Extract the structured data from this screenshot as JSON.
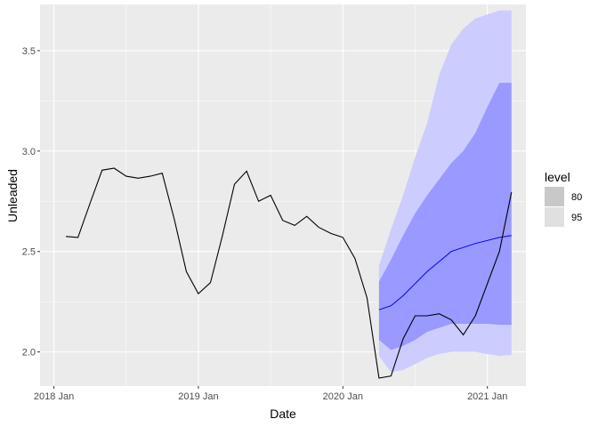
{
  "chart_data": {
    "type": "line",
    "xlabel": "Date",
    "ylabel": "Unleaded",
    "x_ticks": [
      "2018 Jan",
      "2019 Jan",
      "2020 Jan",
      "2021 Jan"
    ],
    "y_ticks": [
      "2.0",
      "2.5",
      "3.0",
      "3.5"
    ],
    "y_tick_values": [
      2.0,
      2.5,
      3.0,
      3.5
    ],
    "xlim": [
      "2017-12",
      "2021-04"
    ],
    "ylim": [
      1.83,
      3.73
    ],
    "grid": true,
    "legend_position": "right",
    "legend": {
      "title": "level",
      "items": [
        {
          "label": "80",
          "swatch_color": "#c8c8c8"
        },
        {
          "label": "95",
          "swatch_color": "#e0e0e0"
        }
      ]
    },
    "colors": {
      "panel": "#ebebeb",
      "grid": "#ffffff",
      "actual": "#000000",
      "forecast": "#0000ff",
      "band95": "#ccccff",
      "band80": "#9999ff"
    },
    "actual": {
      "x": [
        "2018-02",
        "2018-03",
        "2018-04",
        "2018-05",
        "2018-06",
        "2018-07",
        "2018-08",
        "2018-09",
        "2018-10",
        "2018-11",
        "2018-12",
        "2019-01",
        "2019-02",
        "2019-03",
        "2019-04",
        "2019-05",
        "2019-06",
        "2019-07",
        "2019-08",
        "2019-09",
        "2019-10",
        "2019-11",
        "2019-12",
        "2020-01",
        "2020-02",
        "2020-03",
        "2020-04",
        "2020-05",
        "2020-06",
        "2020-07",
        "2020-08",
        "2020-09",
        "2020-10",
        "2020-11",
        "2020-12",
        "2021-01",
        "2021-02",
        "2021-03"
      ],
      "y": [
        2.575,
        2.57,
        2.74,
        2.905,
        2.915,
        2.875,
        2.865,
        2.875,
        2.89,
        2.66,
        2.4,
        2.29,
        2.345,
        2.58,
        2.835,
        2.9,
        2.75,
        2.78,
        2.655,
        2.63,
        2.675,
        2.62,
        2.59,
        2.57,
        2.465,
        2.27,
        1.87,
        1.88,
        2.065,
        2.18,
        2.18,
        2.19,
        2.16,
        2.085,
        2.18,
        2.34,
        2.5,
        2.795
      ]
    },
    "forecast": {
      "x": [
        "2020-04",
        "2020-05",
        "2020-06",
        "2020-07",
        "2020-08",
        "2020-09",
        "2020-10",
        "2020-11",
        "2020-12",
        "2021-01",
        "2021-02",
        "2021-03"
      ],
      "mean": [
        2.21,
        2.23,
        2.28,
        2.34,
        2.4,
        2.45,
        2.5,
        2.52,
        2.54,
        2.555,
        2.57,
        2.58
      ],
      "lo80": [
        2.06,
        2.01,
        2.03,
        2.06,
        2.1,
        2.12,
        2.14,
        2.14,
        2.14,
        2.14,
        2.135,
        2.135
      ],
      "hi80": [
        2.35,
        2.46,
        2.58,
        2.69,
        2.78,
        2.86,
        2.94,
        3.0,
        3.09,
        3.22,
        3.34,
        3.34
      ],
      "lo95": [
        1.98,
        1.9,
        1.91,
        1.94,
        1.97,
        1.99,
        2.0,
        2.0,
        2.0,
        1.99,
        1.98,
        1.985
      ],
      "hi95": [
        2.43,
        2.61,
        2.78,
        2.97,
        3.14,
        3.38,
        3.53,
        3.61,
        3.66,
        3.68,
        3.7,
        3.7
      ]
    }
  }
}
